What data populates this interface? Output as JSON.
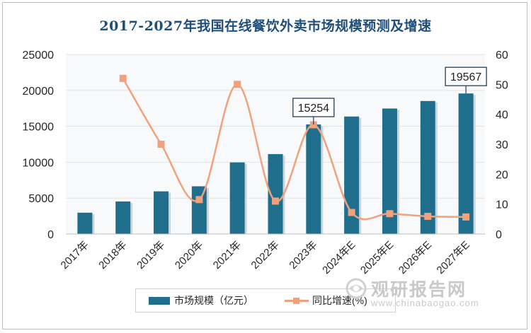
{
  "chart_data": {
    "type": "bar+line",
    "title": "2017-2027年我国在线餐饮外卖市场规模预测及增速",
    "categories": [
      "2017年",
      "2018年",
      "2019年",
      "2020年",
      "2021年",
      "2022年",
      "2023年",
      "2024年E",
      "2025年E",
      "2026年E",
      "2027年E"
    ],
    "series": [
      {
        "name": "市场规模（亿元）",
        "type": "bar",
        "axis": "left",
        "color": "#1f6e8c",
        "values": [
          2966,
          4530,
          5940,
          6646,
          9969,
          11127,
          15254,
          16357,
          17469,
          18517,
          19567
        ]
      },
      {
        "name": "同比增速(%)",
        "type": "line",
        "axis": "right",
        "color": "#f0a27e",
        "values": [
          null,
          52.0,
          30.0,
          11.5,
          50.0,
          11.0,
          36.5,
          7.2,
          6.8,
          5.9,
          5.7
        ]
      }
    ],
    "data_labels": [
      {
        "series": 0,
        "index": 6,
        "text": "15254"
      },
      {
        "series": 0,
        "index": 10,
        "text": "19567"
      }
    ],
    "y_left": {
      "min": 0,
      "max": 25000,
      "ticks": [
        0,
        5000,
        10000,
        15000,
        20000,
        25000
      ]
    },
    "y_right": {
      "min": 0,
      "max": 60,
      "ticks": [
        0,
        10,
        20,
        30,
        40,
        50,
        60
      ]
    },
    "grid": true,
    "legend": "bottom"
  },
  "watermark": {
    "name": "观研报告网",
    "domain": "www.chinabaogao.com",
    "icon": "eye-logo-icon"
  }
}
